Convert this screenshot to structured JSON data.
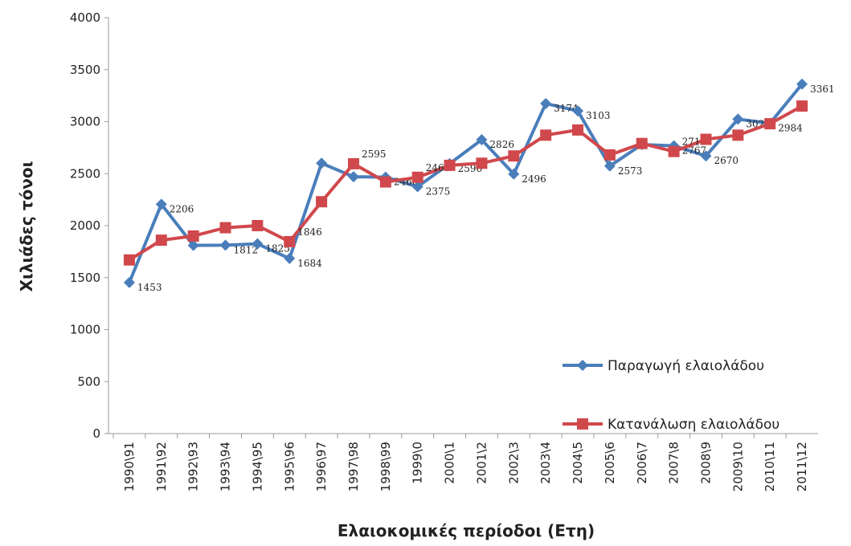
{
  "chart_data": {
    "type": "line",
    "y_label": "Χιλιάδες τόνοι",
    "x_label": "Ελαιοκομικές περίοδοι (Ετη)",
    "categories": [
      "1990\\91",
      "1991\\92",
      "1992\\93",
      "1993\\94",
      "1994\\95",
      "1995\\96",
      "1996\\97",
      "1997\\98",
      "1998\\99",
      "1999\\0",
      "2000\\1",
      "2001\\2",
      "2002\\3",
      "2003\\4",
      "2004\\5",
      "2005\\6",
      "2006\\7",
      "2007\\8",
      "2008\\9",
      "2009\\10",
      "2010\\11",
      "2011\\12"
    ],
    "series": [
      {
        "name": "Παραγωγή ελαιολάδου",
        "color": "#4a7ebb",
        "marker": "diamond",
        "values": [
          1453,
          2206,
          1810,
          1812,
          1825,
          1684,
          2600,
          2470,
          2466,
          2375,
          2596,
          2826,
          2496,
          3174,
          3103,
          2573,
          2780,
          2767,
          2670,
          3024,
          2984,
          3361
        ],
        "value_labels": [
          "1453",
          "2206",
          null,
          "1812",
          "1825",
          "1684",
          null,
          null,
          "2466",
          "2375",
          "2596",
          "2826",
          "2496",
          "3174",
          "3103",
          "2573",
          null,
          "2767",
          "2670",
          "3024",
          "2984",
          "3361"
        ]
      },
      {
        "name": "Κατανάλωση ελαιολάδου",
        "color": "#d0484c",
        "marker": "square",
        "values": [
          1670,
          1860,
          1900,
          1980,
          2000,
          1846,
          2230,
          2595,
          2420,
          2465,
          2580,
          2600,
          2670,
          2870,
          2920,
          2680,
          2790,
          2713,
          2830,
          2870,
          2980,
          3150
        ],
        "value_labels": [
          null,
          null,
          null,
          null,
          null,
          "1846",
          null,
          "2595",
          null,
          "2465",
          null,
          null,
          null,
          null,
          null,
          null,
          null,
          "2713",
          null,
          null,
          null,
          null
        ]
      }
    ],
    "ylim": [
      0,
      4000
    ],
    "yticks": [
      0,
      500,
      1000,
      1500,
      2000,
      2500,
      3000,
      3500,
      4000
    ],
    "grid": false,
    "legend": "lower right"
  }
}
